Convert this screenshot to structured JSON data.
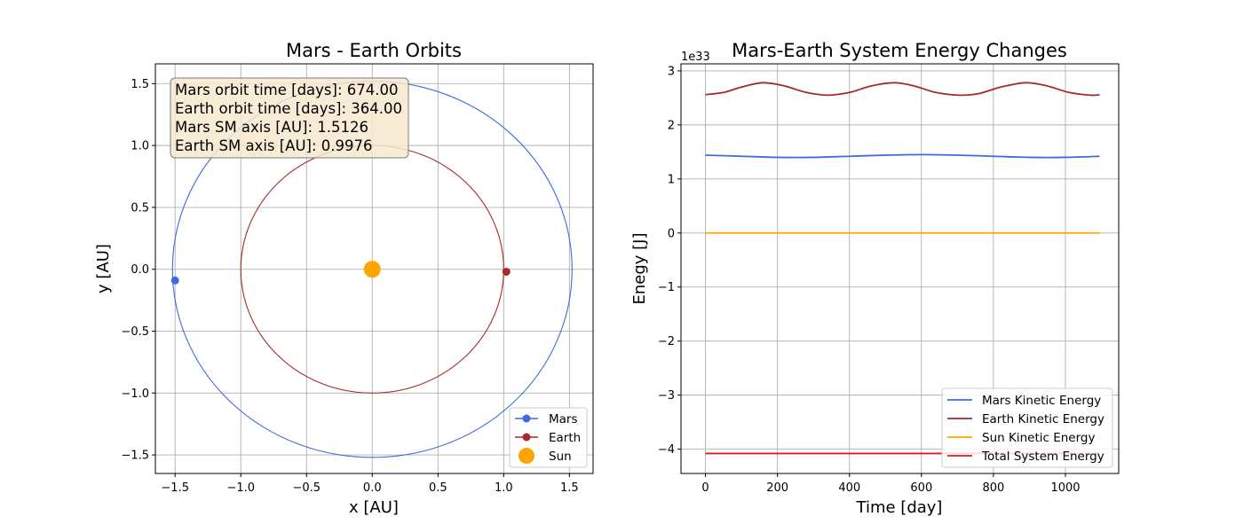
{
  "chart_data": [
    {
      "type": "line",
      "title": "Mars - Earth Orbits",
      "xlabel": "x [AU]",
      "ylabel": "y [AU]",
      "xlim": [
        -1.65,
        1.68
      ],
      "ylim": [
        -1.65,
        1.66
      ],
      "xticks": [
        -1.5,
        -1.0,
        -0.5,
        0.0,
        0.5,
        1.0,
        1.5
      ],
      "yticks": [
        -1.5,
        -1.0,
        -0.5,
        0.0,
        0.5,
        1.0,
        1.5
      ],
      "xtick_labels": [
        "−1.5",
        "−1.0",
        "−0.5",
        "0.0",
        "0.5",
        "1.0",
        "1.5"
      ],
      "ytick_labels": [
        "−1.5",
        "−1.0",
        "−0.5",
        "0.0",
        "0.5",
        "1.0",
        "1.5"
      ],
      "grid": true,
      "legend_position": "lower-right",
      "series": [
        {
          "name": "Mars",
          "color": "#4169e1",
          "kind": "orbit",
          "center": [
            0.0,
            0.0
          ],
          "rx": 1.52,
          "ry": 1.52,
          "marker": [
            -1.5,
            -0.09
          ]
        },
        {
          "name": "Earth",
          "color": "#a52a2a",
          "kind": "orbit",
          "center": [
            0.0,
            0.0
          ],
          "rx": 1.0,
          "ry": 1.0,
          "marker": [
            1.02,
            -0.02
          ]
        },
        {
          "name": "Sun",
          "color": "#ffa500",
          "kind": "point",
          "marker": [
            0.0,
            0.0
          ]
        }
      ],
      "info_box": [
        "Mars orbit time [days]: 674.00",
        "Earth orbit time [days]: 364.00",
        "Mars SM axis [AU]: 1.5126",
        "Earth SM axis [AU]: 0.9976"
      ]
    },
    {
      "type": "line",
      "title": "Mars-Earth System Energy Changes",
      "xlabel": "Time [day]",
      "ylabel": "Enegy [J]",
      "offset_text": "1e33",
      "xlim": [
        -68,
        1148
      ],
      "ylim": [
        -4.45,
        3.13
      ],
      "xticks": [
        0,
        200,
        400,
        600,
        800,
        1000
      ],
      "yticks": [
        -4,
        -3,
        -2,
        -1,
        0,
        1,
        2,
        3
      ],
      "xtick_labels": [
        "0",
        "200",
        "400",
        "600",
        "800",
        "1000"
      ],
      "ytick_labels": [
        "−4",
        "−3",
        "−2",
        "−1",
        "0",
        "1",
        "2",
        "3"
      ],
      "grid": true,
      "legend_position": "lower-right",
      "series": [
        {
          "name": "Mars Kinetic Energy",
          "color": "#4169e1",
          "x": [
            0,
            100,
            200,
            300,
            400,
            500,
            600,
            700,
            800,
            900,
            1000,
            1095
          ],
          "y": [
            1.44,
            1.42,
            1.4,
            1.4,
            1.42,
            1.44,
            1.45,
            1.44,
            1.42,
            1.4,
            1.4,
            1.42
          ]
        },
        {
          "name": "Earth Kinetic Energy",
          "color": "#a52a2a",
          "x": [
            0,
            50,
            100,
            160,
            220,
            280,
            340,
            400,
            460,
            525,
            580,
            640,
            705,
            760,
            820,
            890,
            950,
            1010,
            1070,
            1095
          ],
          "y": [
            2.56,
            2.6,
            2.7,
            2.78,
            2.72,
            2.6,
            2.55,
            2.6,
            2.72,
            2.78,
            2.72,
            2.6,
            2.55,
            2.58,
            2.7,
            2.78,
            2.72,
            2.6,
            2.55,
            2.56
          ]
        },
        {
          "name": "Sun Kinetic Energy",
          "color": "#ffa500",
          "x": [
            0,
            1095
          ],
          "y": [
            0.0,
            0.0
          ]
        },
        {
          "name": "Total System Energy",
          "color": "#e31a1c",
          "x": [
            0,
            1095
          ],
          "y": [
            -4.08,
            -4.08
          ]
        }
      ]
    }
  ]
}
